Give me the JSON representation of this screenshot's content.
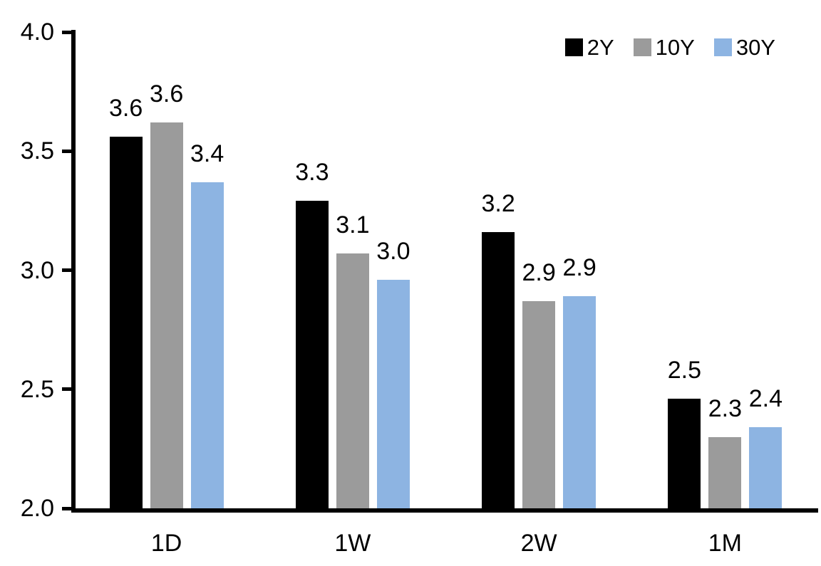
{
  "chart_data": {
    "type": "bar",
    "title": "",
    "xlabel": "",
    "ylabel": "",
    "categories": [
      "1D",
      "1W",
      "2W",
      "1M"
    ],
    "series": [
      {
        "name": "2Y",
        "color": "#000000",
        "values": [
          3.6,
          3.3,
          3.2,
          2.5
        ],
        "values_precise": [
          3.56,
          3.29,
          3.16,
          2.46
        ],
        "labels": [
          "3.6",
          "3.3",
          "3.2",
          "2.5"
        ]
      },
      {
        "name": "10Y",
        "color": "#9b9b9b",
        "values": [
          3.6,
          3.1,
          2.9,
          2.3
        ],
        "values_precise": [
          3.62,
          3.07,
          2.87,
          2.3
        ],
        "labels": [
          "3.6",
          "3.1",
          "2.9",
          "2.3"
        ]
      },
      {
        "name": "30Y",
        "color": "#8db4e2",
        "values": [
          3.4,
          3.0,
          2.9,
          2.4
        ],
        "values_precise": [
          3.37,
          2.96,
          2.89,
          2.34
        ],
        "labels": [
          "3.4",
          "3.0",
          "2.9",
          "2.4"
        ]
      }
    ],
    "y_axis": {
      "min": 2.0,
      "max": 4.0,
      "tick_step": 0.5,
      "ticks": [
        4.0,
        3.5,
        3.0,
        2.5,
        2.0
      ],
      "tick_labels": [
        "4.0",
        "3.5",
        "3.0",
        "2.5",
        "2.0"
      ]
    },
    "legend": {
      "position": "top-right",
      "entries": [
        "2Y",
        "10Y",
        "30Y"
      ]
    },
    "grid": false,
    "data_labels_shown": true
  }
}
